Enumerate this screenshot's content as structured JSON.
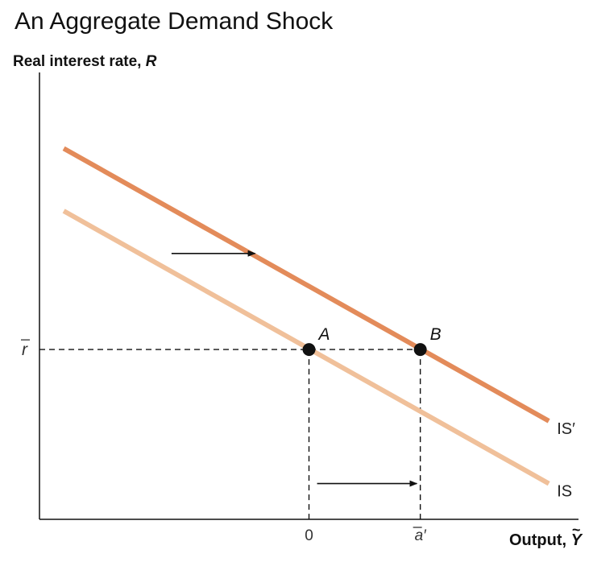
{
  "chart_data": {
    "type": "line",
    "title": "An Aggregate Demand Shock",
    "ylabel": "Real interest rate,",
    "ylabel_var": "R",
    "xlabel": "Output,",
    "xlabel_var": "Y",
    "xlabel_var_accent": "~",
    "xlim": [
      -10,
      10
    ],
    "ylim": [
      0,
      10
    ],
    "grid": false,
    "series": [
      {
        "name": "IS",
        "x": [
          -9.1,
          8.9
        ],
        "y": [
          6.9,
          0.8
        ],
        "color": "#f0c09a"
      },
      {
        "name": "IS′",
        "x": [
          -9.1,
          8.9
        ],
        "y": [
          8.3,
          2.2
        ],
        "color": "#e38b5a"
      }
    ],
    "points": [
      {
        "label": "A",
        "x": 0,
        "y": 3.8
      },
      {
        "label": "B",
        "x": 4.13,
        "y": 3.8
      }
    ],
    "y_ticks": [
      {
        "label": "r",
        "accent": "bar",
        "value": 3.8
      }
    ],
    "x_ticks": [
      {
        "label": "0",
        "value": 0
      },
      {
        "label": "a′",
        "accent": "bar",
        "value": 4.13
      }
    ],
    "arrows": [
      {
        "from": [
          -5.1,
          5.95
        ],
        "to": [
          -2.0,
          5.95
        ]
      },
      {
        "from": [
          0.3,
          0.8
        ],
        "to": [
          4.0,
          0.8
        ]
      }
    ]
  }
}
